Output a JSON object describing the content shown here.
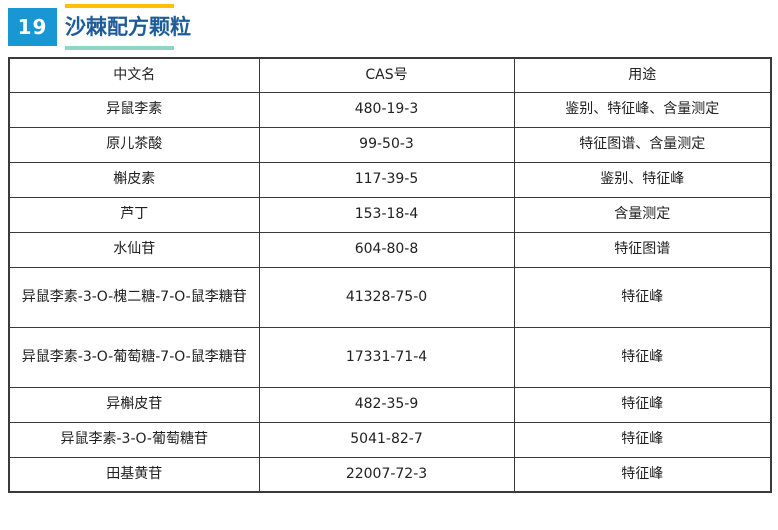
{
  "page": {
    "number": "19",
    "title": "沙棘配方颗粒"
  },
  "colors": {
    "number_box_bg": "#1897D4",
    "number_text": "#FFFFFF",
    "title_text": "#1E5C99",
    "title_top_bar": "#FFC000",
    "title_bottom_bar": "#8FD5C2",
    "table_border": "#3A3A3A",
    "table_text": "#212121"
  },
  "table": {
    "headers": [
      "中文名",
      "CAS号",
      "用途"
    ],
    "rows": [
      {
        "name": "异鼠李素",
        "cas": "480-19-3",
        "usage": "鉴别、特征峰、含量测定"
      },
      {
        "name": "原儿茶酸",
        "cas": "99-50-3",
        "usage": "特征图谱、含量测定"
      },
      {
        "name": "槲皮素",
        "cas": "117-39-5",
        "usage": "鉴别、特征峰"
      },
      {
        "name": "芦丁",
        "cas": "153-18-4",
        "usage": "含量测定"
      },
      {
        "name": "水仙苷",
        "cas": "604-80-8",
        "usage": "特征图谱"
      },
      {
        "name": "异鼠李素-3-O-槐二糖-7-O-鼠李糖苷",
        "cas": "41328-75-0",
        "usage": "特征峰"
      },
      {
        "name": "异鼠李素-3-O-葡萄糖-7-O-鼠李糖苷",
        "cas": "17331-71-4",
        "usage": "特征峰"
      },
      {
        "name": "异槲皮苷",
        "cas": "482-35-9",
        "usage": "特征峰"
      },
      {
        "name": "异鼠李素-3-O-葡萄糖苷",
        "cas": "5041-82-7",
        "usage": "特征峰"
      },
      {
        "name": "田基黄苷",
        "cas": "22007-72-3",
        "usage": "特征峰"
      }
    ],
    "tall_row_indexes": [
      5,
      6
    ]
  }
}
